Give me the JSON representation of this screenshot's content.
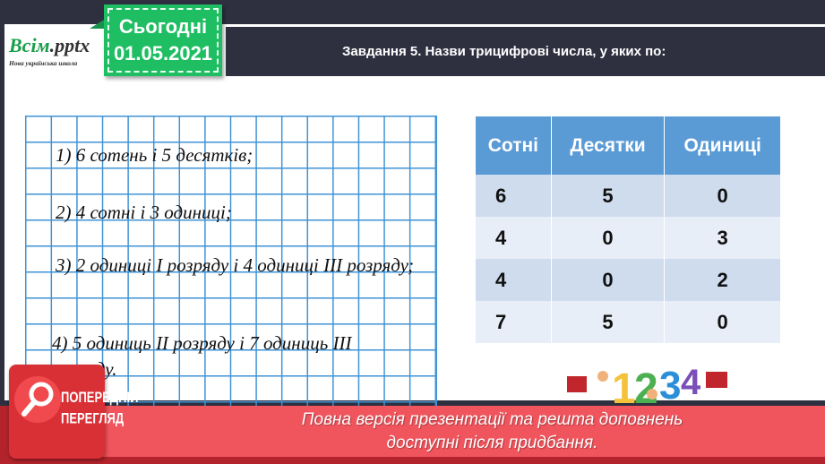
{
  "logo": {
    "brand": "Всім",
    "brand_ext": ".pptx",
    "subtitle": "Нова українська школа"
  },
  "date_badge": {
    "label": "Сьогодні",
    "date": "01.05.2021"
  },
  "header": {
    "title": "Завдання 5. Назви трицифрові числа, у яких по:"
  },
  "tasks": [
    "1) 6 сотень і 5 десятків;",
    "2) 4 сотні і 3 одиниці;",
    "3) 2 одиниці I розряду і 4 одиниці III розряду;",
    "4) 5 одиниць II розряду і 7 одиниць III розряду."
  ],
  "table": {
    "headers": [
      "Сотні",
      "Десятки",
      "Одиниці"
    ],
    "rows": [
      [
        "6",
        "5",
        "0"
      ],
      [
        "4",
        "0",
        "3"
      ],
      [
        "4",
        "0",
        "2"
      ],
      [
        "7",
        "5",
        "0"
      ]
    ],
    "colors": {
      "header": "#5b9bd5",
      "row_odd": "#cfdcee",
      "row_even": "#e8eef7"
    }
  },
  "preview": {
    "line1": "ПОПЕРЕДНІЙ",
    "line2": "ПЕРЕГЛЯД",
    "icon": "magnifier-icon"
  },
  "banner": {
    "line1": "Повна версія презентації та решта доповнень",
    "line2": "доступні після придбання."
  },
  "colors": {
    "accent_green": "#1fbe63",
    "dark": "#2e2f3f",
    "banner_red": "#f0545c",
    "grid_blue": "#3f93d6"
  }
}
